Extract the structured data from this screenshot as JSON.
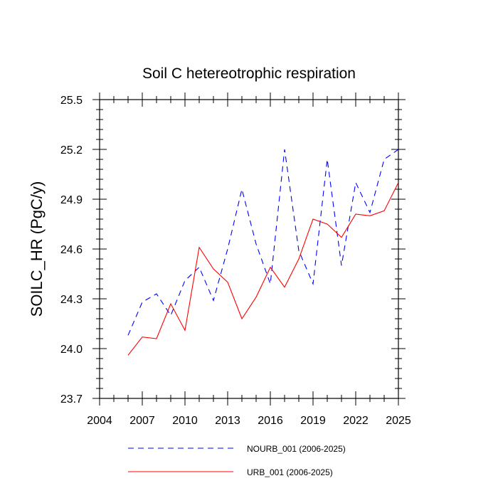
{
  "chart_data": {
    "type": "line",
    "title": "Soil C hetereotrophic respiration",
    "xlabel": "",
    "ylabel": "SOILC_HR  (PgC/y)",
    "xlim": [
      2004,
      2025
    ],
    "ylim": [
      23.7,
      25.5
    ],
    "x_ticks": [
      2004,
      2007,
      2010,
      2013,
      2016,
      2019,
      2022,
      2025
    ],
    "y_ticks": [
      23.7,
      24.0,
      24.3,
      24.6,
      24.9,
      25.2,
      25.5
    ],
    "x_tick_labels": [
      "2004",
      "2007",
      "2010",
      "2013",
      "2016",
      "2019",
      "2022",
      "2025"
    ],
    "y_tick_labels": [
      "23.7",
      "24.0",
      "24.3",
      "24.6",
      "24.9",
      "25.2",
      "25.5"
    ],
    "grid": false,
    "legend_position": "bottom",
    "series": [
      {
        "name": "NOURB_001 (2006-2025)",
        "color": "#0000ff",
        "dash": "dashed",
        "x": [
          2006,
          2007,
          2008,
          2009,
          2010,
          2011,
          2012,
          2013,
          2014,
          2015,
          2016,
          2017,
          2018,
          2019,
          2020,
          2021,
          2022,
          2023,
          2024,
          2025
        ],
        "values": [
          24.08,
          24.28,
          24.33,
          24.2,
          24.41,
          24.49,
          24.29,
          24.6,
          24.96,
          24.63,
          24.39,
          25.2,
          24.59,
          24.39,
          25.14,
          24.5,
          25.0,
          24.82,
          25.14,
          25.2
        ]
      },
      {
        "name": "URB_001 (2006-2025)",
        "color": "#ff0000",
        "dash": "solid",
        "x": [
          2006,
          2007,
          2008,
          2009,
          2010,
          2011,
          2012,
          2013,
          2014,
          2015,
          2016,
          2017,
          2018,
          2019,
          2020,
          2021,
          2022,
          2023,
          2024,
          2025
        ],
        "values": [
          23.96,
          24.07,
          24.06,
          24.27,
          24.11,
          24.61,
          24.48,
          24.4,
          24.18,
          24.31,
          24.49,
          24.37,
          24.54,
          24.78,
          24.75,
          24.67,
          24.81,
          24.8,
          24.83,
          25.0
        ]
      }
    ]
  }
}
